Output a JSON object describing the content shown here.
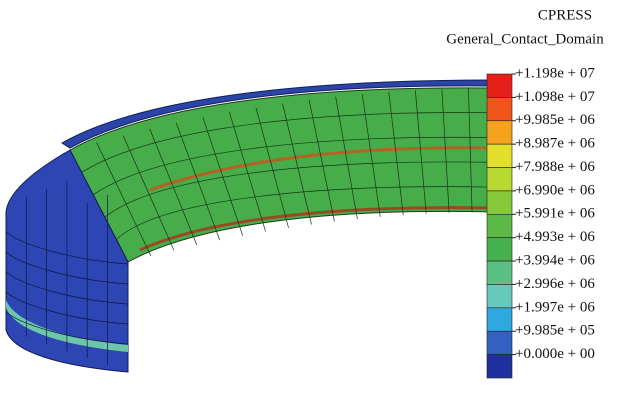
{
  "legend": {
    "title": "CPRESS",
    "subtitle": "General_Contact_Domain",
    "labels": [
      "+1.198e + 07",
      "+1.098e + 07",
      "+9.985e + 06",
      "+8.987e + 06",
      "+7.988e + 06",
      "+6.990e + 06",
      "+5.991e + 06",
      "+4.993e + 06",
      "+3.994e + 06",
      "+2.996e + 06",
      "+1.997e + 06",
      "+9.985e + 05",
      "+0.000e + 00"
    ],
    "colors": [
      "#e62019",
      "#f0561b",
      "#f5a21f",
      "#e3df2c",
      "#b8d832",
      "#86c93b",
      "#5cb944",
      "#45b04c",
      "#5cc083",
      "#66c9bb",
      "#2fa7df",
      "#3461bf",
      "#1f2f9c"
    ]
  }
}
